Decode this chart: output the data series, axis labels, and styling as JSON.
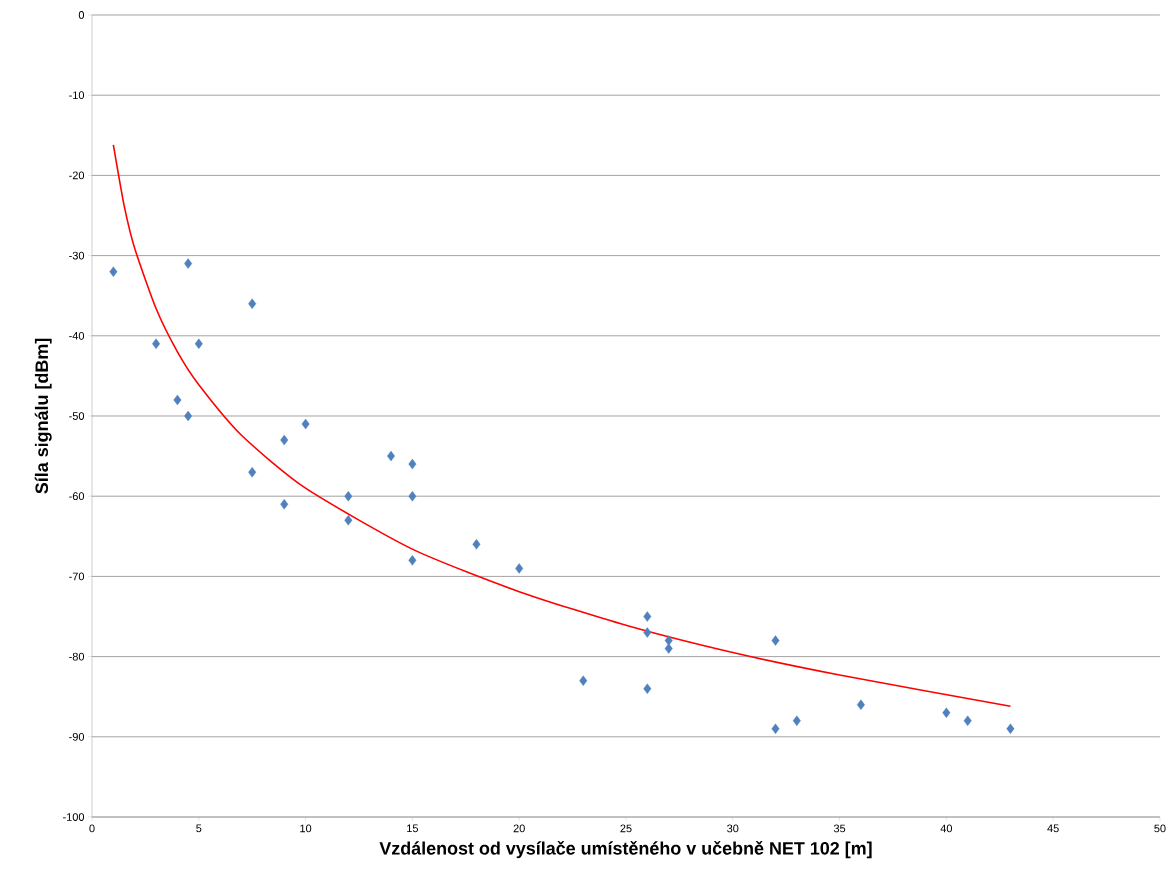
{
  "chart_data": {
    "type": "scatter",
    "xlabel": "Vzdálenost od vysílače umístěného v učebně NET 102 [m]",
    "ylabel": "Síla signálu [dBm]",
    "xlim": [
      0,
      50
    ],
    "xticks": [
      0,
      5,
      10,
      15,
      20,
      25,
      30,
      35,
      40,
      45,
      50
    ],
    "ylim": [
      -100,
      0
    ],
    "yticks": [
      -100,
      -90,
      -80,
      -70,
      -60,
      -50,
      -40,
      -30,
      -20,
      -10,
      0
    ],
    "grid": "y",
    "series": [
      {
        "marker": "diamond",
        "color": "#4f81bd",
        "x": [
          1,
          3,
          4.5,
          4,
          4.5,
          5,
          7.5,
          7.5,
          9,
          9,
          10,
          12,
          12,
          14,
          15,
          15,
          15,
          18,
          20,
          23,
          26,
          26,
          26,
          27,
          27,
          32,
          32,
          33,
          36,
          40,
          41,
          43
        ],
        "values": [
          -32,
          -41,
          -31,
          -48,
          -50,
          -41,
          -36,
          -57,
          -53,
          -61,
          -51,
          -60,
          -63,
          -55,
          -56,
          -60,
          -68,
          -66,
          -69,
          -83,
          -75,
          -77,
          -84,
          -78,
          -79,
          -78,
          -89,
          -88,
          -86,
          -87,
          -88,
          -89
        ]
      },
      {
        "type": "line",
        "marker": "none",
        "color": "#ff0000",
        "x": [
          1,
          1.5,
          2,
          3,
          4,
          5,
          7,
          10,
          15,
          20,
          25,
          30,
          35,
          43
        ],
        "values": [
          -16.2,
          -23.7,
          -29.1,
          -36.6,
          -42.0,
          -46.1,
          -52.4,
          -59.0,
          -66.6,
          -71.9,
          -76.1,
          -79.5,
          -82.3,
          -86.2
        ]
      }
    ]
  }
}
